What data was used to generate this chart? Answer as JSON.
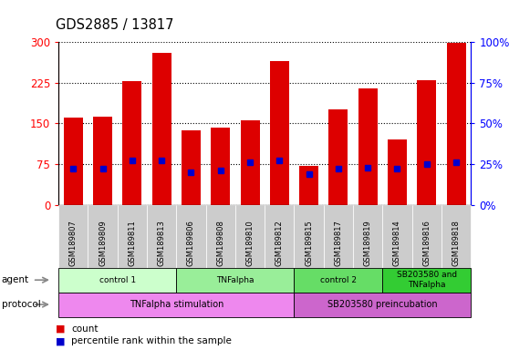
{
  "title": "GDS2885 / 13817",
  "samples": [
    "GSM189807",
    "GSM189809",
    "GSM189811",
    "GSM189813",
    "GSM189806",
    "GSM189808",
    "GSM189810",
    "GSM189812",
    "GSM189815",
    "GSM189817",
    "GSM189819",
    "GSM189814",
    "GSM189816",
    "GSM189818"
  ],
  "counts": [
    160,
    162,
    228,
    280,
    137,
    143,
    155,
    265,
    72,
    175,
    215,
    120,
    230,
    298
  ],
  "percentile_ranks": [
    22,
    22,
    27,
    27,
    20,
    21,
    26,
    27,
    19,
    22,
    23,
    22,
    25,
    26
  ],
  "bar_color": "#dd0000",
  "marker_color": "#0000cc",
  "ylim_left": [
    0,
    300
  ],
  "ylim_right": [
    0,
    100
  ],
  "yticks_left": [
    0,
    75,
    150,
    225,
    300
  ],
  "yticks_right": [
    0,
    25,
    50,
    75,
    100
  ],
  "ytick_labels_left": [
    "0",
    "75",
    "150",
    "225",
    "300"
  ],
  "ytick_labels_right": [
    "0%",
    "25%",
    "50%",
    "75%",
    "100%"
  ],
  "agent_groups": [
    {
      "label": "control 1",
      "start": 0,
      "end": 3,
      "color": "#ccffcc"
    },
    {
      "label": "TNFalpha",
      "start": 4,
      "end": 7,
      "color": "#99ee99"
    },
    {
      "label": "control 2",
      "start": 8,
      "end": 10,
      "color": "#66dd66"
    },
    {
      "label": "SB203580 and\nTNFalpha",
      "start": 11,
      "end": 13,
      "color": "#33cc33"
    }
  ],
  "protocol_groups": [
    {
      "label": "TNFalpha stimulation",
      "start": 0,
      "end": 7,
      "color": "#ee88ee"
    },
    {
      "label": "SB203580 preincubation",
      "start": 8,
      "end": 13,
      "color": "#cc66cc"
    }
  ],
  "legend_items": [
    {
      "label": "count",
      "color": "#dd0000"
    },
    {
      "label": "percentile rank within the sample",
      "color": "#0000cc"
    }
  ],
  "bg_color": "#ffffff",
  "tick_bg_color": "#cccccc"
}
